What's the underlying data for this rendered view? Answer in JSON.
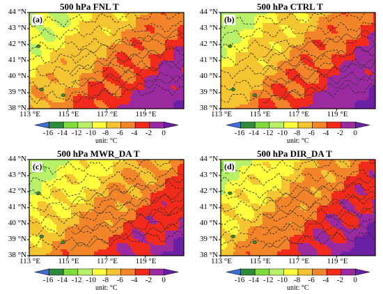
{
  "panels": [
    {
      "title": "500 hPa FNL T",
      "label": "(a)"
    },
    {
      "title": "500 hPa CTRL T",
      "label": "(b)"
    },
    {
      "title": "500 hPa MWR_DA T",
      "label": "(c)"
    },
    {
      "title": "500 hPa DIR_DA T",
      "label": "(d)"
    }
  ],
  "lat_ticks": [
    "44 °N",
    "43 °N",
    "42 °N",
    "41 °N",
    "40 °N",
    "39 °N",
    "38 °N"
  ],
  "lon_ticks": [
    "113 °E",
    "115 °E",
    "117 °E",
    "119 °E"
  ],
  "colorbar": {
    "ticks": [
      "-16",
      "-14",
      "-12",
      "-10",
      "-8",
      "-6",
      "-4",
      "-2",
      "0"
    ],
    "unit": "unit: °C",
    "colors": [
      "#3d6ed8",
      "#2f8a3c",
      "#7fdc3c",
      "#b8f06a",
      "#ffff3e",
      "#f5c431",
      "#f2852a",
      "#f12a1c",
      "#9b2aa0",
      "#6a1fa5"
    ]
  }
}
